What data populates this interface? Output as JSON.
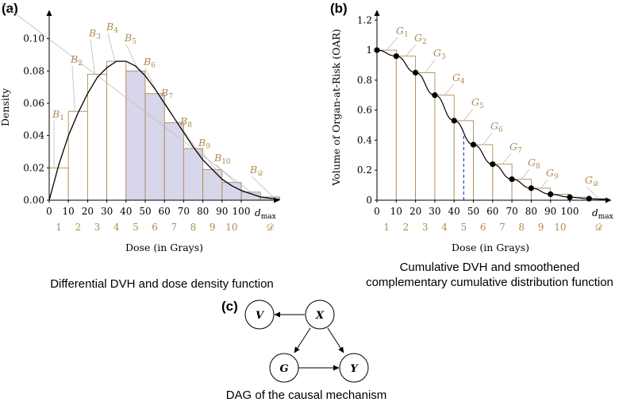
{
  "colors": {
    "bar_stroke": "#b08a55",
    "shade_fill": "#d8d6ea",
    "curve": "#000000",
    "label_brown": "#b08a55",
    "dash_blue": "#3a3acc",
    "leader": "#bdbdbd"
  },
  "panel_a": {
    "label": "(a)",
    "caption": "Differential DVH and dose density function",
    "chart_data": {
      "type": "bar",
      "title": "",
      "xlabel": "Dose (in Grays)",
      "ylabel": "Density",
      "x_ticks": [
        "0",
        "10",
        "20",
        "30",
        "40",
        "50",
        "60",
        "70",
        "80",
        "90",
        "100"
      ],
      "x_end_label": "d",
      "x_end_sub": "max",
      "y_ticks": [
        "0.00",
        "0.02",
        "0.04",
        "0.06",
        "0.08",
        "0.10"
      ],
      "ylim": [
        0,
        0.12
      ],
      "bin_edges": [
        0,
        10,
        20,
        30,
        40,
        50,
        60,
        70,
        80,
        90,
        100,
        110,
        120
      ],
      "values": [
        0.02,
        0.055,
        0.078,
        0.086,
        0.08,
        0.066,
        0.048,
        0.032,
        0.019,
        0.011,
        0.005,
        0.002
      ],
      "shaded_from_bin": 4,
      "bin_names": [
        "B",
        "B",
        "B",
        "B",
        "B",
        "B",
        "B",
        "B",
        "B",
        "B",
        "B",
        "B"
      ],
      "bin_subs": [
        "1",
        "2",
        "3",
        "4",
        "5",
        "6",
        "7",
        "8",
        "9",
        "10",
        "",
        "𝒟"
      ],
      "bin_indices": [
        "1",
        "2",
        "3",
        "4",
        "5",
        "6",
        "7",
        "8",
        "9",
        "10",
        "",
        "𝒟"
      ],
      "curve": {
        "x": [
          0,
          5,
          10,
          15,
          20,
          25,
          30,
          35,
          40,
          45,
          50,
          55,
          60,
          65,
          70,
          75,
          80,
          85,
          90,
          95,
          100,
          105,
          110,
          115,
          120
        ],
        "y": [
          0,
          0.022,
          0.04,
          0.054,
          0.066,
          0.076,
          0.082,
          0.086,
          0.086,
          0.083,
          0.077,
          0.069,
          0.06,
          0.051,
          0.042,
          0.033,
          0.025,
          0.019,
          0.013,
          0.009,
          0.006,
          0.004,
          0.002,
          0.0012,
          0.0005
        ]
      }
    }
  },
  "panel_b": {
    "label": "(b)",
    "caption_lines": [
      "Cumulative DVH and smoothened",
      "complementary cumulative distribution function"
    ],
    "chart_data": {
      "type": "bar",
      "title": "",
      "xlabel": "Dose (in Grays)",
      "ylabel": "Volume of Organ-at-Risk (OAR)",
      "x_ticks": [
        "0",
        "10",
        "20",
        "30",
        "40",
        "50",
        "60",
        "70",
        "80",
        "90",
        "100"
      ],
      "x_end_label": "d",
      "x_end_sub": "max",
      "y_ticks": [
        "0",
        "0.2",
        "0.4",
        "0.6",
        "0.8",
        "1",
        "1.2"
      ],
      "ylim": [
        0,
        1.26
      ],
      "bin_edges": [
        0,
        10,
        20,
        30,
        40,
        50,
        60,
        70,
        80,
        90,
        100,
        110,
        120
      ],
      "values": [
        1.0,
        0.96,
        0.85,
        0.7,
        0.53,
        0.37,
        0.24,
        0.14,
        0.08,
        0.04,
        0.02,
        0.01
      ],
      "bin_names": [
        "G",
        "G",
        "G",
        "G",
        "G",
        "G",
        "G",
        "G",
        "G",
        "",
        "",
        "G"
      ],
      "bin_subs": [
        "1",
        "2",
        "3",
        "4",
        "5",
        "6",
        "7",
        "8",
        "9",
        "",
        "",
        "𝒟"
      ],
      "bin_indices": [
        "1",
        "2",
        "3",
        "4",
        "5",
        "6",
        "7",
        "8",
        "9",
        "10",
        "",
        "𝒟"
      ],
      "points": {
        "x": [
          0,
          10,
          20,
          30,
          40,
          50,
          60,
          70,
          80,
          90,
          100,
          110
        ],
        "y": [
          1.0,
          0.96,
          0.85,
          0.7,
          0.53,
          0.37,
          0.24,
          0.14,
          0.08,
          0.04,
          0.02,
          0.01
        ]
      },
      "dashed_x": 45,
      "dashed_y": 0.45
    }
  },
  "panel_c": {
    "label": "(c)",
    "caption": "DAG of the causal mechanism",
    "nodes": [
      {
        "id": "V",
        "label": "V"
      },
      {
        "id": "X",
        "label": "X"
      },
      {
        "id": "G",
        "label": "G"
      },
      {
        "id": "Y",
        "label": "Y"
      }
    ],
    "edges": [
      {
        "from": "X",
        "to": "V"
      },
      {
        "from": "X",
        "to": "G"
      },
      {
        "from": "X",
        "to": "Y"
      },
      {
        "from": "G",
        "to": "Y"
      }
    ]
  }
}
